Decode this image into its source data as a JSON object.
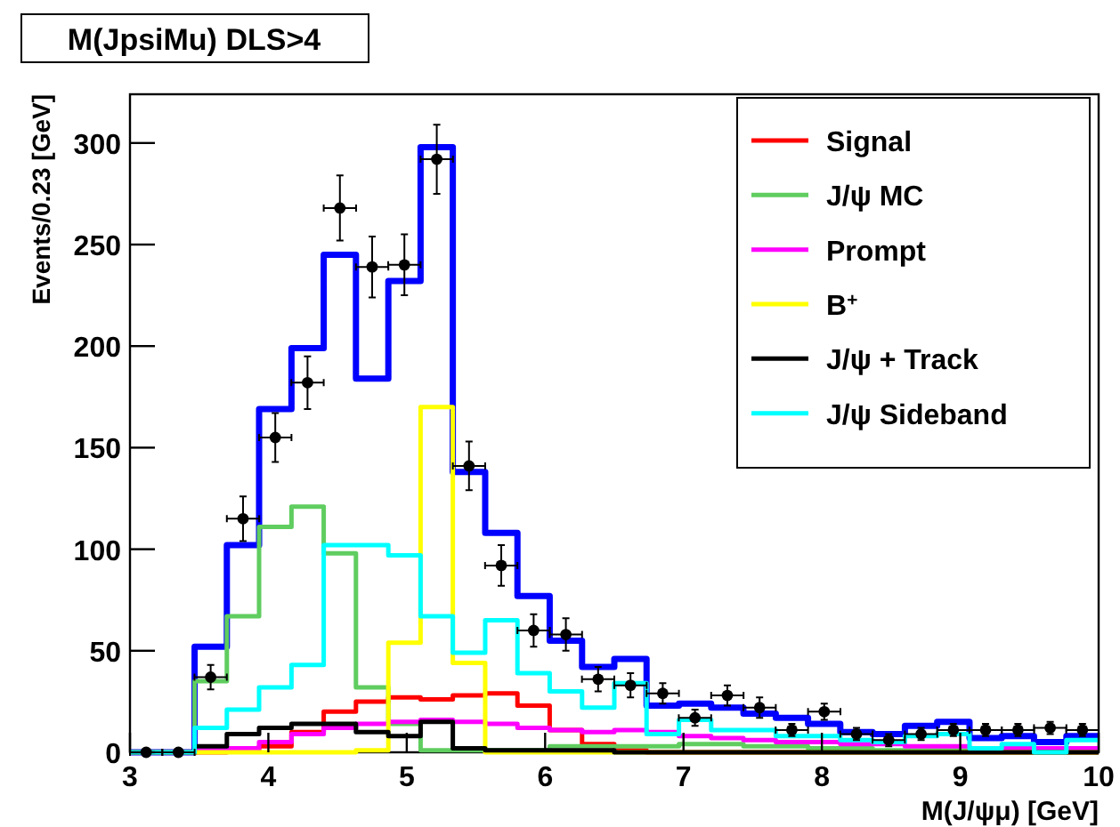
{
  "chart_data": {
    "type": "histogram",
    "title": "M(JpsiMu) DLS>4",
    "xlabel": "M(J/ψμ) [GeV]",
    "ylabel": "Events/0.23 [GeV]",
    "bins": [
      3,
      3.233,
      3.467,
      3.7,
      3.933,
      4.167,
      4.4,
      4.633,
      4.867,
      5.1,
      5.333,
      5.567,
      5.8,
      6.033,
      6.267,
      6.5,
      6.733,
      6.967,
      7.2,
      7.433,
      7.667,
      7.9,
      8.133,
      8.367,
      8.6,
      8.833,
      9.067,
      9.3,
      9.533,
      9.767,
      10
    ],
    "xlim": [
      3,
      10
    ],
    "xticks": [
      3,
      4,
      5,
      6,
      7,
      8,
      9,
      10
    ],
    "ylim": [
      0,
      324
    ],
    "yticks": [
      0,
      50,
      100,
      150,
      200,
      250,
      300
    ],
    "legend": "top right",
    "grid": false,
    "series": [
      {
        "color": "#0000ff",
        "values": [
          0,
          0,
          52,
          102,
          169,
          199,
          245,
          184,
          232,
          298,
          138,
          108,
          77,
          55,
          42,
          46,
          23,
          24,
          22,
          19,
          17,
          14,
          10,
          9,
          13,
          15,
          7,
          8,
          5,
          8
        ]
      },
      {
        "name": "Signal",
        "color": "#ff0000",
        "values": [
          0,
          0,
          0,
          1,
          3,
          10,
          20,
          25,
          27,
          26,
          28,
          29,
          23,
          11,
          4,
          1,
          0,
          0,
          0,
          0,
          0,
          0,
          0,
          0,
          0,
          0,
          0,
          0,
          0,
          0
        ]
      },
      {
        "name": "J/ψ MC",
        "color": "#5fcd5f",
        "values": [
          0,
          0,
          35,
          67,
          111,
          121,
          98,
          32,
          14,
          1,
          1,
          1,
          1,
          3,
          3,
          3,
          3,
          4,
          4,
          3,
          3,
          2,
          2,
          1,
          1,
          1,
          1,
          1,
          1,
          1
        ]
      },
      {
        "name": "Prompt",
        "color": "#ff00ff",
        "values": [
          0,
          0,
          1,
          2,
          5,
          9,
          12,
          14,
          15,
          16,
          15,
          14,
          12,
          11,
          10,
          11,
          10,
          8,
          7,
          6,
          5,
          5,
          4,
          4,
          3,
          3,
          2,
          2,
          2,
          2
        ]
      },
      {
        "name": "B$^{+}$",
        "color": "#ffff00",
        "values": [
          0,
          0,
          0,
          0,
          0,
          0,
          0,
          1,
          54,
          170,
          44,
          0,
          0,
          0,
          0,
          0,
          0,
          0,
          0,
          0,
          0,
          0,
          0,
          0,
          0,
          0,
          0,
          0,
          0,
          0
        ]
      },
      {
        "name": "J/ψ + Track",
        "color": "#000000",
        "values": [
          0,
          0,
          3,
          9,
          12,
          14,
          14,
          10,
          8,
          15,
          2,
          1,
          1,
          1,
          1,
          0,
          0,
          0,
          0,
          0,
          0,
          0,
          0,
          0,
          0,
          0,
          0,
          0,
          0,
          0
        ]
      },
      {
        "name": "J/ψ Sideband",
        "color": "#00ffff",
        "values": [
          0,
          0,
          12,
          21,
          32,
          43,
          102,
          102,
          97,
          67,
          49,
          65,
          39,
          30,
          22,
          34,
          9,
          16,
          11,
          11,
          8,
          8,
          6,
          5,
          8,
          9,
          2,
          4,
          0,
          6
        ]
      },
      {
        "type": "scatter",
        "color": "#000000",
        "marker": "circle",
        "x": [
          3.117,
          3.35,
          3.583,
          3.817,
          4.05,
          4.283,
          4.517,
          4.75,
          4.983,
          5.217,
          5.45,
          5.683,
          5.917,
          6.15,
          6.383,
          6.617,
          6.85,
          7.083,
          7.317,
          7.55,
          7.783,
          8.017,
          8.25,
          8.483,
          8.717,
          8.95,
          9.183,
          9.417,
          9.65,
          9.883
        ],
        "values": [
          0,
          0,
          37,
          115,
          155,
          182,
          268,
          239,
          240,
          292,
          141,
          92,
          60,
          58,
          36,
          33,
          29,
          17,
          28,
          22,
          11,
          20,
          9,
          6,
          9,
          11,
          11,
          11,
          12,
          11
        ],
        "errors": [
          null,
          null,
          6,
          11,
          12,
          13,
          16,
          15,
          15,
          17,
          12,
          10,
          8,
          8,
          6,
          6,
          5,
          4,
          5,
          5,
          3,
          4,
          3,
          3,
          3,
          3,
          3,
          3,
          3,
          3
        ],
        "xerrors": [
          0.117,
          0.117,
          0.117,
          0.117,
          0.117,
          0.117,
          0.117,
          0.117,
          0.117,
          0.117,
          0.117,
          0.117,
          0.117,
          0.117,
          0.117,
          0.117,
          0.117,
          0.117,
          0.117,
          0.117,
          0.117,
          0.117,
          0.117,
          0.117,
          0.117,
          0.117,
          0.117,
          0.117,
          0.117,
          0.117
        ]
      }
    ]
  }
}
